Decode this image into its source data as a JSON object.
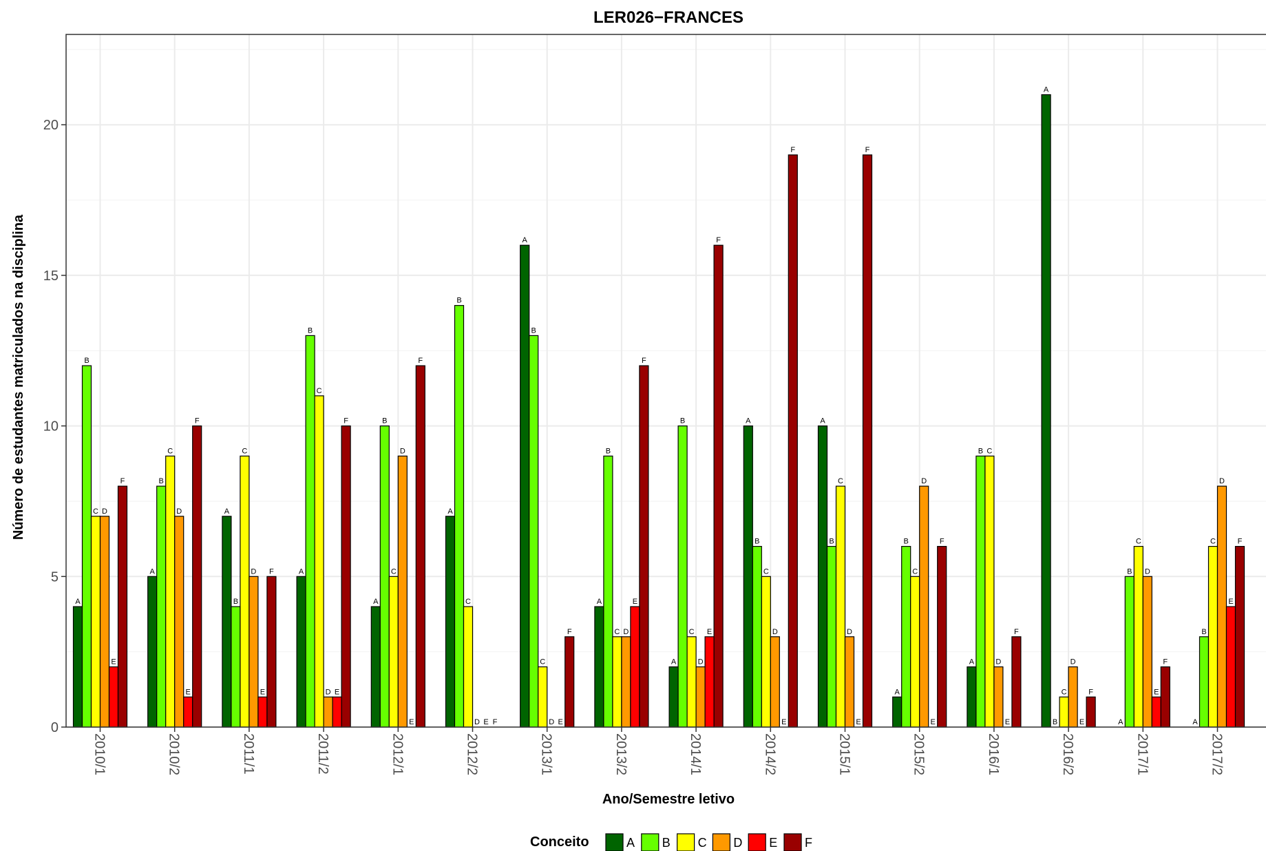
{
  "chart_data": {
    "type": "bar",
    "title": "LER026−FRANCES",
    "xlabel": "Ano/Semestre letivo",
    "ylabel": "Número de estudantes matriculados na disciplina",
    "ylim": [
      0,
      23
    ],
    "yticks": [
      0,
      5,
      10,
      15,
      20
    ],
    "grid": true,
    "legend_position": "bottom",
    "legend_title": "Conceito",
    "categories": [
      "2010/1",
      "2010/2",
      "2011/1",
      "2011/2",
      "2012/1",
      "2012/2",
      "2013/1",
      "2013/2",
      "2014/1",
      "2014/2",
      "2015/1",
      "2015/2",
      "2016/1",
      "2016/2",
      "2017/1",
      "2017/2"
    ],
    "series": [
      {
        "name": "A",
        "color": "#006400",
        "values": [
          4,
          5,
          7,
          5,
          4,
          7,
          16,
          4,
          2,
          10,
          10,
          1,
          2,
          21,
          0,
          0
        ]
      },
      {
        "name": "B",
        "color": "#66FF00",
        "values": [
          12,
          8,
          4,
          13,
          10,
          14,
          13,
          9,
          10,
          6,
          6,
          6,
          9,
          0,
          5,
          3
        ]
      },
      {
        "name": "C",
        "color": "#FFFF00",
        "values": [
          7,
          9,
          9,
          11,
          5,
          4,
          2,
          3,
          3,
          5,
          8,
          5,
          9,
          1,
          6,
          6
        ]
      },
      {
        "name": "D",
        "color": "#FF9900",
        "values": [
          7,
          7,
          5,
          1,
          9,
          0,
          0,
          3,
          2,
          3,
          3,
          8,
          2,
          2,
          5,
          8
        ]
      },
      {
        "name": "E",
        "color": "#FF0000",
        "values": [
          2,
          1,
          1,
          1,
          0,
          0,
          0,
          4,
          3,
          0,
          0,
          0,
          0,
          0,
          1,
          4
        ]
      },
      {
        "name": "F",
        "color": "#990000",
        "values": [
          8,
          10,
          5,
          10,
          12,
          0,
          3,
          12,
          16,
          19,
          19,
          6,
          3,
          1,
          2,
          6
        ]
      }
    ]
  }
}
